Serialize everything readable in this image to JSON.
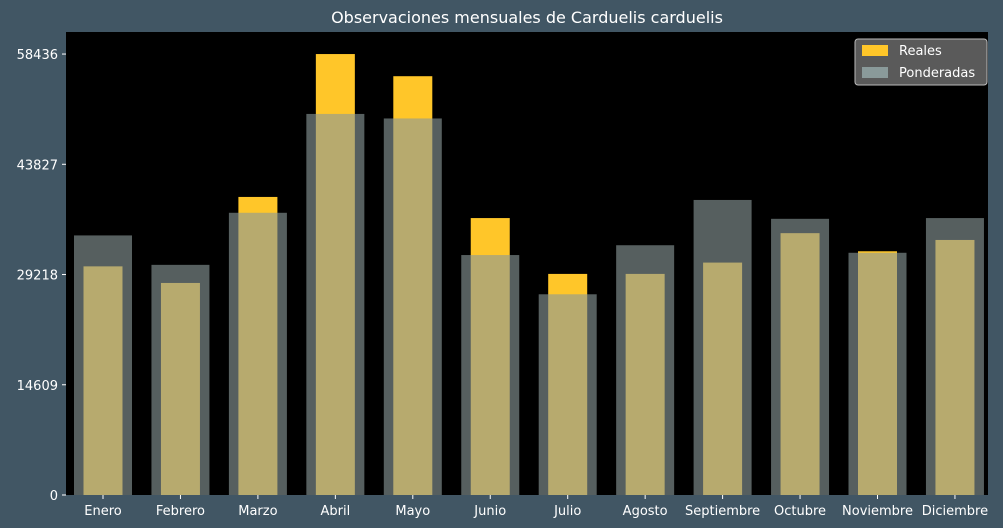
{
  "chart_data": {
    "type": "bar",
    "title": "Observaciones mensuales de Carduelis carduelis",
    "xlabel": "",
    "ylabel": "",
    "categories": [
      "Enero",
      "Febrero",
      "Marzo",
      "Abril",
      "Mayo",
      "Junio",
      "Julio",
      "Agosto",
      "Septiembre",
      "Octubre",
      "Noviembre",
      "Diciembre"
    ],
    "series": [
      {
        "name": "Reales",
        "color": "#ffc629",
        "values": [
          30300,
          28100,
          39500,
          58436,
          55500,
          36700,
          29300,
          29300,
          30800,
          34700,
          32300,
          33800
        ]
      },
      {
        "name": "Ponderadas",
        "color": "#8a9a9a",
        "values": [
          34400,
          30500,
          37400,
          50500,
          49900,
          31800,
          26600,
          33100,
          39100,
          36600,
          32100,
          36700
        ]
      }
    ],
    "yticks": [
      0,
      14609,
      29218,
      43827,
      58436
    ],
    "ylim": [
      0,
      61358
    ],
    "grid": false,
    "legend_position": "top-right",
    "background": "#000000",
    "figure_background": "#415664"
  }
}
